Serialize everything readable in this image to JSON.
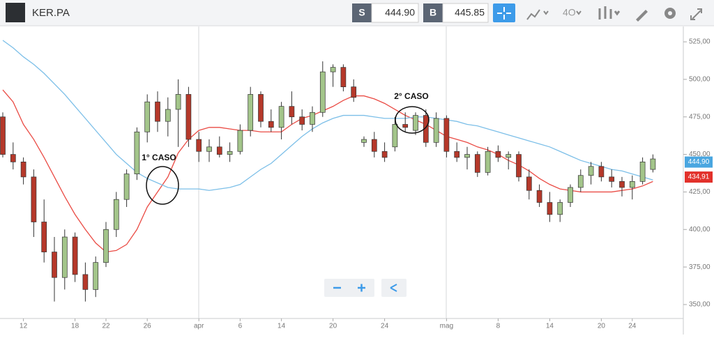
{
  "toolbar": {
    "symbol": "KER.PA",
    "sell_label": "S",
    "sell": "444.90",
    "buy_label": "B",
    "buy": "445.85",
    "indicator": "4O"
  },
  "chart_data": {
    "type": "candlestick",
    "categories": [
      null,
      null,
      "12",
      null,
      null,
      null,
      null,
      "18",
      null,
      null,
      "22",
      null,
      null,
      null,
      "26",
      null,
      null,
      null,
      null,
      "apr",
      null,
      null,
      null,
      "6",
      null,
      null,
      null,
      "14",
      null,
      null,
      null,
      null,
      "20",
      null,
      null,
      null,
      null,
      "24",
      null,
      null,
      null,
      null,
      null,
      "mag",
      null,
      null,
      null,
      null,
      "8",
      null,
      null,
      null,
      null,
      "14",
      null,
      null,
      null,
      null,
      "20",
      null,
      null,
      "24",
      null,
      null
    ],
    "ohlc": {
      "open": [
        475,
        450,
        445,
        435,
        405,
        385,
        368,
        395,
        370,
        360,
        378,
        400,
        420,
        437,
        465,
        485,
        472,
        480,
        490,
        460,
        452,
        455,
        450,
        452,
        466,
        490,
        472,
        468,
        482,
        475,
        470,
        478,
        505,
        508,
        495,
        458,
        460,
        452,
        455,
        470,
        466,
        476,
        458,
        474,
        452,
        448,
        450,
        438,
        452,
        448,
        450,
        435,
        426,
        418,
        410,
        418,
        428,
        436,
        442,
        435,
        432,
        428,
        432,
        440
      ],
      "high": [
        478,
        458,
        448,
        440,
        420,
        395,
        400,
        398,
        378,
        382,
        405,
        425,
        440,
        468,
        490,
        492,
        488,
        500,
        495,
        465,
        460,
        462,
        458,
        470,
        495,
        492,
        480,
        485,
        492,
        480,
        482,
        512,
        510,
        510,
        500,
        462,
        465,
        458,
        475,
        478,
        478,
        480,
        478,
        476,
        458,
        455,
        452,
        455,
        456,
        452,
        452,
        440,
        430,
        425,
        420,
        430,
        440,
        445,
        445,
        440,
        435,
        436,
        448,
        450
      ],
      "low": [
        448,
        440,
        430,
        395,
        378,
        352,
        360,
        365,
        352,
        355,
        375,
        395,
        415,
        433,
        458,
        465,
        462,
        455,
        455,
        445,
        445,
        448,
        445,
        450,
        462,
        468,
        465,
        460,
        470,
        466,
        465,
        475,
        495,
        492,
        485,
        455,
        448,
        445,
        452,
        465,
        463,
        455,
        455,
        448,
        445,
        440,
        435,
        436,
        445,
        440,
        432,
        420,
        415,
        405,
        405,
        415,
        425,
        430,
        432,
        428,
        422,
        420,
        430,
        438
      ],
      "close": [
        450,
        445,
        435,
        405,
        385,
        368,
        395,
        370,
        360,
        378,
        400,
        420,
        437,
        465,
        485,
        472,
        480,
        490,
        460,
        452,
        455,
        450,
        452,
        466,
        490,
        472,
        468,
        482,
        475,
        470,
        478,
        505,
        508,
        495,
        488,
        460,
        452,
        448,
        470,
        468,
        476,
        458,
        474,
        452,
        448,
        450,
        438,
        452,
        448,
        450,
        435,
        426,
        418,
        410,
        418,
        428,
        436,
        442,
        435,
        432,
        428,
        432,
        445,
        447
      ]
    },
    "up_color": "#a3c58a",
    "down_color": "#b5382a",
    "lines": [
      {
        "color": "#ea4b44",
        "values": [
          493,
          485,
          470,
          460,
          448,
          435,
          422,
          410,
          400,
          391,
          385,
          386,
          390,
          400,
          415,
          425,
          435,
          451,
          460,
          466,
          468,
          468,
          467,
          466,
          466,
          465,
          465,
          465,
          470,
          474,
          476,
          479,
          482,
          486,
          489,
          489,
          487,
          484,
          480,
          476,
          473,
          470,
          466,
          462,
          460,
          458,
          455,
          453,
          450,
          446,
          443,
          439,
          434,
          430,
          427,
          426,
          425,
          425,
          425,
          425,
          426,
          427,
          429,
          432
        ]
      },
      {
        "color": "#7cbfe8",
        "values": [
          526,
          521,
          515,
          510,
          504,
          497,
          490,
          482,
          474,
          466,
          458,
          450,
          444,
          438,
          434,
          431,
          428,
          427,
          427,
          427,
          426,
          427,
          428,
          430,
          435,
          440,
          444,
          450,
          456,
          462,
          467,
          471,
          474,
          476,
          476,
          476,
          475,
          474,
          474,
          474,
          475,
          475,
          474,
          473,
          472,
          470,
          469,
          467,
          465,
          463,
          461,
          459,
          457,
          455,
          452,
          449,
          446,
          444,
          442,
          440,
          439,
          437,
          435,
          433
        ]
      }
    ],
    "ylim": [
      340.7,
      534.3
    ],
    "yticks": [
      {
        "value": 350,
        "label": "350,00"
      },
      {
        "value": 375,
        "label": "375,00"
      },
      {
        "value": 400,
        "label": "400,00"
      },
      {
        "value": 425,
        "label": "425,00"
      },
      {
        "value": 450,
        "label": "450,00"
      },
      {
        "value": 475,
        "label": "475,00"
      },
      {
        "value": 500,
        "label": "500,00"
      },
      {
        "value": 525,
        "label": "525,00"
      }
    ],
    "price_tags": [
      {
        "value": 444.9,
        "label": "444,90",
        "color": "#4aa6e0"
      },
      {
        "value": 434.91,
        "label": "434,91",
        "color": "#e2312b"
      }
    ],
    "annotations": [
      "1° CASO",
      "2° CASO"
    ]
  }
}
